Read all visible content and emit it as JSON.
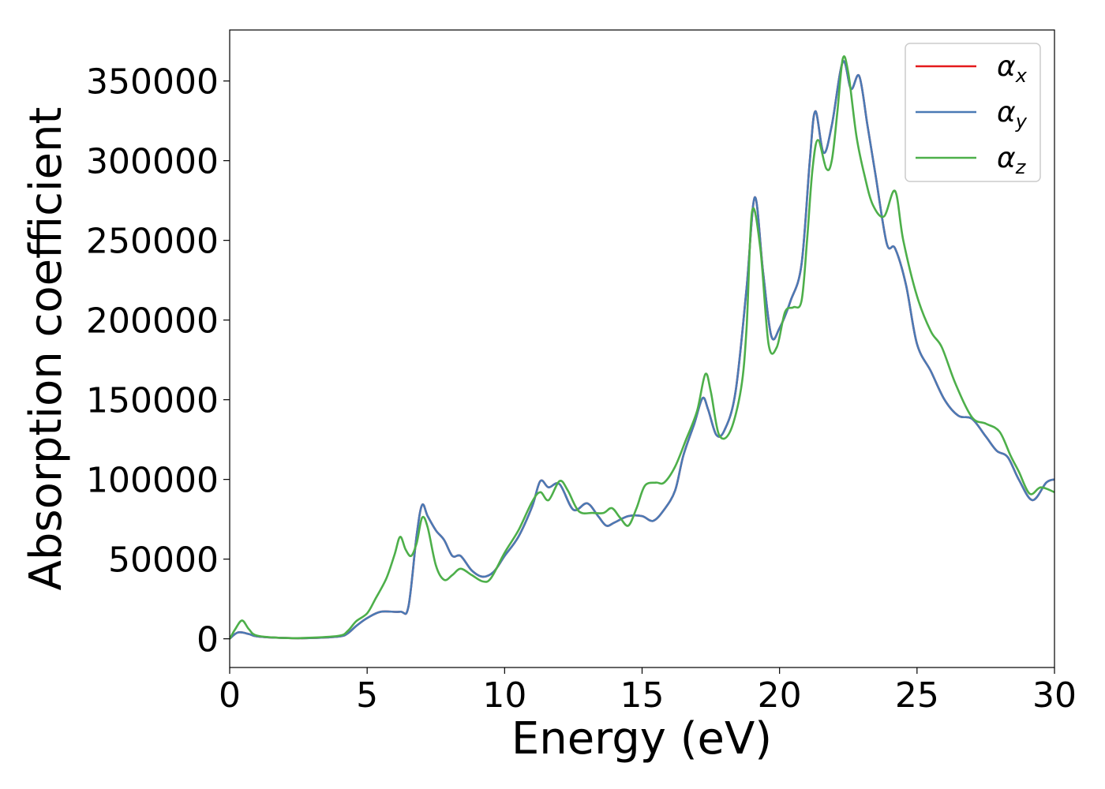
{
  "chart_data": {
    "type": "line",
    "xlabel": "Energy (eV)",
    "ylabel": "Absorption coefficient",
    "xlim": [
      0,
      30
    ],
    "ylim": [
      -18000,
      382000
    ],
    "xticks": [
      "0",
      "5",
      "10",
      "15",
      "20",
      "25",
      "30"
    ],
    "yticks": [
      "0",
      "50000",
      "100000",
      "150000",
      "200000",
      "250000",
      "300000",
      "350000"
    ],
    "legend_position": "top-right",
    "series": [
      {
        "name": "αx",
        "symbol": "α",
        "subscript": "x",
        "color": "#e41a1c",
        "points": [
          [
            0,
            0
          ],
          [
            0.3,
            4000
          ],
          [
            0.7,
            3000
          ],
          [
            1,
            1500
          ],
          [
            2,
            500
          ],
          [
            3,
            500
          ],
          [
            4,
            1500
          ],
          [
            4.3,
            3500
          ],
          [
            4.6,
            8000
          ],
          [
            5,
            13000
          ],
          [
            5.5,
            17000
          ],
          [
            6.2,
            17000
          ],
          [
            6.5,
            20000
          ],
          [
            6.8,
            65000
          ],
          [
            7,
            84000
          ],
          [
            7.2,
            77000
          ],
          [
            7.5,
            68000
          ],
          [
            7.8,
            62000
          ],
          [
            8.1,
            52000
          ],
          [
            8.4,
            52000
          ],
          [
            8.8,
            43000
          ],
          [
            9.2,
            39000
          ],
          [
            9.6,
            42000
          ],
          [
            10,
            52000
          ],
          [
            10.5,
            64000
          ],
          [
            11,
            83000
          ],
          [
            11.3,
            99000
          ],
          [
            11.6,
            95000
          ],
          [
            12,
            97000
          ],
          [
            12.5,
            81000
          ],
          [
            13,
            85000
          ],
          [
            13.4,
            77000
          ],
          [
            13.7,
            71000
          ],
          [
            14,
            73000
          ],
          [
            14.5,
            77000
          ],
          [
            15,
            77000
          ],
          [
            15.4,
            74000
          ],
          [
            15.8,
            81000
          ],
          [
            16.2,
            93000
          ],
          [
            16.5,
            115000
          ],
          [
            16.9,
            135000
          ],
          [
            17.2,
            151000
          ],
          [
            17.4,
            144000
          ],
          [
            17.7,
            128000
          ],
          [
            18,
            131000
          ],
          [
            18.4,
            155000
          ],
          [
            18.8,
            220000
          ],
          [
            19.1,
            277000
          ],
          [
            19.4,
            230000
          ],
          [
            19.7,
            190000
          ],
          [
            20,
            195000
          ],
          [
            20.4,
            212000
          ],
          [
            20.8,
            235000
          ],
          [
            21.1,
            300000
          ],
          [
            21.3,
            331000
          ],
          [
            21.6,
            305000
          ],
          [
            21.9,
            322000
          ],
          [
            22.3,
            362000
          ],
          [
            22.6,
            345000
          ],
          [
            22.9,
            353000
          ],
          [
            23.2,
            322000
          ],
          [
            23.5,
            290000
          ],
          [
            23.9,
            248000
          ],
          [
            24.2,
            245000
          ],
          [
            24.6,
            222000
          ],
          [
            25,
            185000
          ],
          [
            25.5,
            168000
          ],
          [
            26,
            150000
          ],
          [
            26.5,
            140000
          ],
          [
            27,
            138000
          ],
          [
            27.5,
            127000
          ],
          [
            27.9,
            118000
          ],
          [
            28.3,
            114000
          ],
          [
            28.7,
            100000
          ],
          [
            29.2,
            87000
          ],
          [
            29.7,
            98000
          ],
          [
            30,
            100000
          ]
        ]
      },
      {
        "name": "αy",
        "symbol": "α",
        "subscript": "y",
        "color": "#4a7ab5",
        "points": [
          [
            0,
            0
          ],
          [
            0.3,
            4000
          ],
          [
            0.7,
            3000
          ],
          [
            1,
            1500
          ],
          [
            2,
            500
          ],
          [
            3,
            500
          ],
          [
            4,
            1500
          ],
          [
            4.3,
            3500
          ],
          [
            4.6,
            8000
          ],
          [
            5,
            13000
          ],
          [
            5.5,
            17000
          ],
          [
            6.2,
            17000
          ],
          [
            6.5,
            20000
          ],
          [
            6.8,
            65000
          ],
          [
            7,
            84000
          ],
          [
            7.2,
            77000
          ],
          [
            7.5,
            68000
          ],
          [
            7.8,
            62000
          ],
          [
            8.1,
            52000
          ],
          [
            8.4,
            52000
          ],
          [
            8.8,
            43000
          ],
          [
            9.2,
            39000
          ],
          [
            9.6,
            42000
          ],
          [
            10,
            52000
          ],
          [
            10.5,
            64000
          ],
          [
            11,
            83000
          ],
          [
            11.3,
            99000
          ],
          [
            11.6,
            95000
          ],
          [
            12,
            97000
          ],
          [
            12.5,
            81000
          ],
          [
            13,
            85000
          ],
          [
            13.4,
            77000
          ],
          [
            13.7,
            71000
          ],
          [
            14,
            73000
          ],
          [
            14.5,
            77000
          ],
          [
            15,
            77000
          ],
          [
            15.4,
            74000
          ],
          [
            15.8,
            81000
          ],
          [
            16.2,
            93000
          ],
          [
            16.5,
            115000
          ],
          [
            16.9,
            135000
          ],
          [
            17.2,
            151000
          ],
          [
            17.4,
            144000
          ],
          [
            17.7,
            128000
          ],
          [
            18,
            131000
          ],
          [
            18.4,
            155000
          ],
          [
            18.8,
            220000
          ],
          [
            19.1,
            277000
          ],
          [
            19.4,
            230000
          ],
          [
            19.7,
            190000
          ],
          [
            20,
            195000
          ],
          [
            20.4,
            212000
          ],
          [
            20.8,
            235000
          ],
          [
            21.1,
            300000
          ],
          [
            21.3,
            331000
          ],
          [
            21.6,
            305000
          ],
          [
            21.9,
            322000
          ],
          [
            22.3,
            362000
          ],
          [
            22.6,
            345000
          ],
          [
            22.9,
            353000
          ],
          [
            23.2,
            322000
          ],
          [
            23.5,
            290000
          ],
          [
            23.9,
            248000
          ],
          [
            24.2,
            245000
          ],
          [
            24.6,
            222000
          ],
          [
            25,
            185000
          ],
          [
            25.5,
            168000
          ],
          [
            26,
            150000
          ],
          [
            26.5,
            140000
          ],
          [
            27,
            138000
          ],
          [
            27.5,
            127000
          ],
          [
            27.9,
            118000
          ],
          [
            28.3,
            114000
          ],
          [
            28.7,
            100000
          ],
          [
            29.2,
            87000
          ],
          [
            29.7,
            98000
          ],
          [
            30,
            100000
          ]
        ]
      },
      {
        "name": "αz",
        "symbol": "α",
        "subscript": "z",
        "color": "#4daf4a",
        "points": [
          [
            0,
            0
          ],
          [
            0.2,
            6000
          ],
          [
            0.45,
            11500
          ],
          [
            0.7,
            6000
          ],
          [
            1,
            2000
          ],
          [
            2,
            500
          ],
          [
            3,
            700
          ],
          [
            4,
            2000
          ],
          [
            4.3,
            5000
          ],
          [
            4.6,
            11000
          ],
          [
            5,
            16000
          ],
          [
            5.3,
            25000
          ],
          [
            5.7,
            38000
          ],
          [
            6,
            53000
          ],
          [
            6.2,
            64000
          ],
          [
            6.4,
            56000
          ],
          [
            6.6,
            52000
          ],
          [
            6.8,
            60000
          ],
          [
            7,
            76000
          ],
          [
            7.2,
            70000
          ],
          [
            7.5,
            46000
          ],
          [
            7.8,
            37000
          ],
          [
            8.1,
            40000
          ],
          [
            8.4,
            44000
          ],
          [
            8.8,
            40000
          ],
          [
            9.2,
            36000
          ],
          [
            9.5,
            38000
          ],
          [
            10,
            54000
          ],
          [
            10.5,
            68000
          ],
          [
            11,
            86000
          ],
          [
            11.3,
            92000
          ],
          [
            11.6,
            87000
          ],
          [
            12,
            99000
          ],
          [
            12.3,
            93000
          ],
          [
            12.7,
            80000
          ],
          [
            13.2,
            79000
          ],
          [
            13.6,
            79000
          ],
          [
            13.9,
            82000
          ],
          [
            14.2,
            76000
          ],
          [
            14.5,
            71000
          ],
          [
            14.8,
            82000
          ],
          [
            15.1,
            96000
          ],
          [
            15.5,
            98000
          ],
          [
            15.8,
            98000
          ],
          [
            16.2,
            108000
          ],
          [
            16.6,
            125000
          ],
          [
            17,
            143000
          ],
          [
            17.3,
            166000
          ],
          [
            17.5,
            155000
          ],
          [
            17.8,
            128000
          ],
          [
            18.2,
            130000
          ],
          [
            18.6,
            157000
          ],
          [
            18.8,
            195000
          ],
          [
            19,
            268000
          ],
          [
            19.3,
            245000
          ],
          [
            19.6,
            185000
          ],
          [
            19.9,
            183000
          ],
          [
            20.2,
            205000
          ],
          [
            20.5,
            208000
          ],
          [
            20.8,
            212000
          ],
          [
            21,
            250000
          ],
          [
            21.2,
            295000
          ],
          [
            21.4,
            313000
          ],
          [
            21.7,
            295000
          ],
          [
            21.9,
            300000
          ],
          [
            22.1,
            330000
          ],
          [
            22.3,
            364000
          ],
          [
            22.5,
            355000
          ],
          [
            22.8,
            315000
          ],
          [
            23.1,
            290000
          ],
          [
            23.4,
            272000
          ],
          [
            23.8,
            265000
          ],
          [
            24.2,
            281000
          ],
          [
            24.5,
            250000
          ],
          [
            25,
            215000
          ],
          [
            25.5,
            193000
          ],
          [
            25.9,
            183000
          ],
          [
            26.4,
            160000
          ],
          [
            27,
            139000
          ],
          [
            27.5,
            135000
          ],
          [
            28,
            130000
          ],
          [
            28.4,
            115000
          ],
          [
            28.7,
            105000
          ],
          [
            29.1,
            91000
          ],
          [
            29.5,
            95000
          ],
          [
            30,
            92000
          ]
        ]
      }
    ]
  }
}
